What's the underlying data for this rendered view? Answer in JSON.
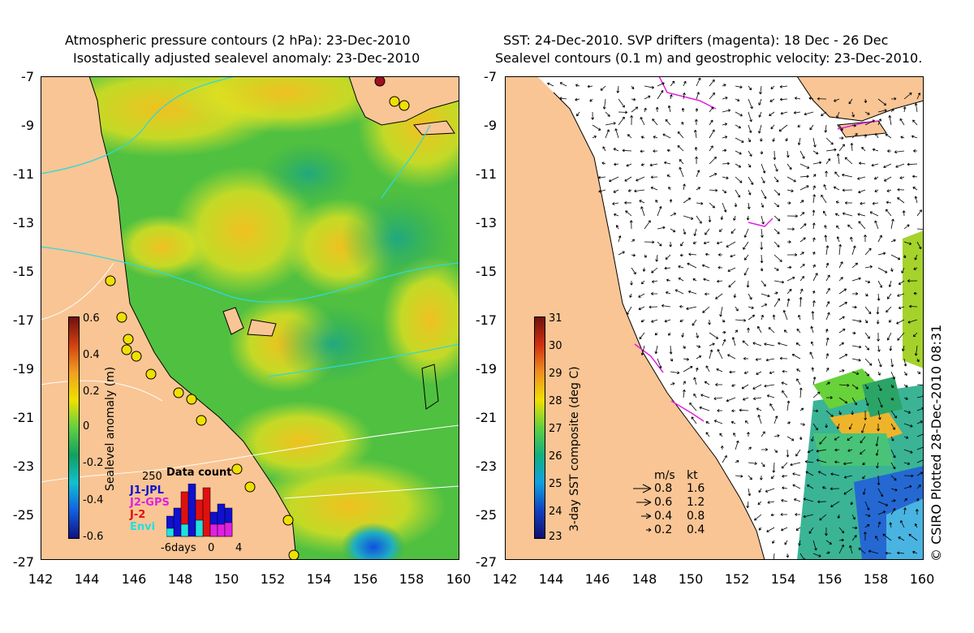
{
  "left_panel": {
    "title_line1": "Atmospheric pressure contours (2 hPa): 23-Dec-2010",
    "title_line2": "Isostatically adjusted sealevel anomaly: 23-Dec-2010",
    "colorbar": {
      "label": "Sealevel anomaly (m)",
      "ticks": [
        "0.6",
        "0.4",
        "0.2",
        "0",
        "-0.2",
        "-0.4",
        "-0.6"
      ]
    },
    "data_count": {
      "title": "Data count",
      "max_label": "250",
      "series": [
        "J1-JPL",
        "J2-GPS",
        "J-2",
        "Envi"
      ],
      "series_colors": [
        "#1010d0",
        "#e020e0",
        "#e01010",
        "#20e0e0"
      ],
      "axis_labels": [
        "-6days",
        "0",
        "4"
      ]
    }
  },
  "right_panel": {
    "title_line1": "SST: 24-Dec-2010. SVP drifters (magenta): 18 Dec - 26 Dec",
    "title_line2": "Sealevel contours (0.1 m) and geostrophic velocity: 23-Dec-2010.",
    "colorbar": {
      "label": "3-day SST composite (deg C)",
      "ticks": [
        "31",
        "30",
        "29",
        "28",
        "27",
        "26",
        "25",
        "24",
        "23"
      ]
    },
    "speed_legend": {
      "header_ms": "m/s",
      "header_kt": "kt",
      "rows": [
        {
          "ms": "0.8",
          "kt": "1.6"
        },
        {
          "ms": "0.6",
          "kt": "1.2"
        },
        {
          "ms": "0.4",
          "kt": "0.8"
        },
        {
          "ms": "0.2",
          "kt": "0.4"
        }
      ]
    },
    "credit": "© CSIRO Plotted 28-Dec-2010 08:31"
  },
  "axes": {
    "lat_labels": [
      "-7",
      "-9",
      "-11",
      "-13",
      "-15",
      "-17",
      "-19",
      "-21",
      "-23",
      "-25",
      "-27"
    ],
    "lon_labels": [
      "142",
      "144",
      "146",
      "148",
      "150",
      "152",
      "154",
      "156",
      "158",
      "160"
    ]
  },
  "colors": {
    "land": "#f9c594",
    "sea_low": "#1aa04a",
    "sea_mid": "#5cc83a",
    "sea_high": "#e8e000",
    "sea_peak": "#f0b020"
  }
}
